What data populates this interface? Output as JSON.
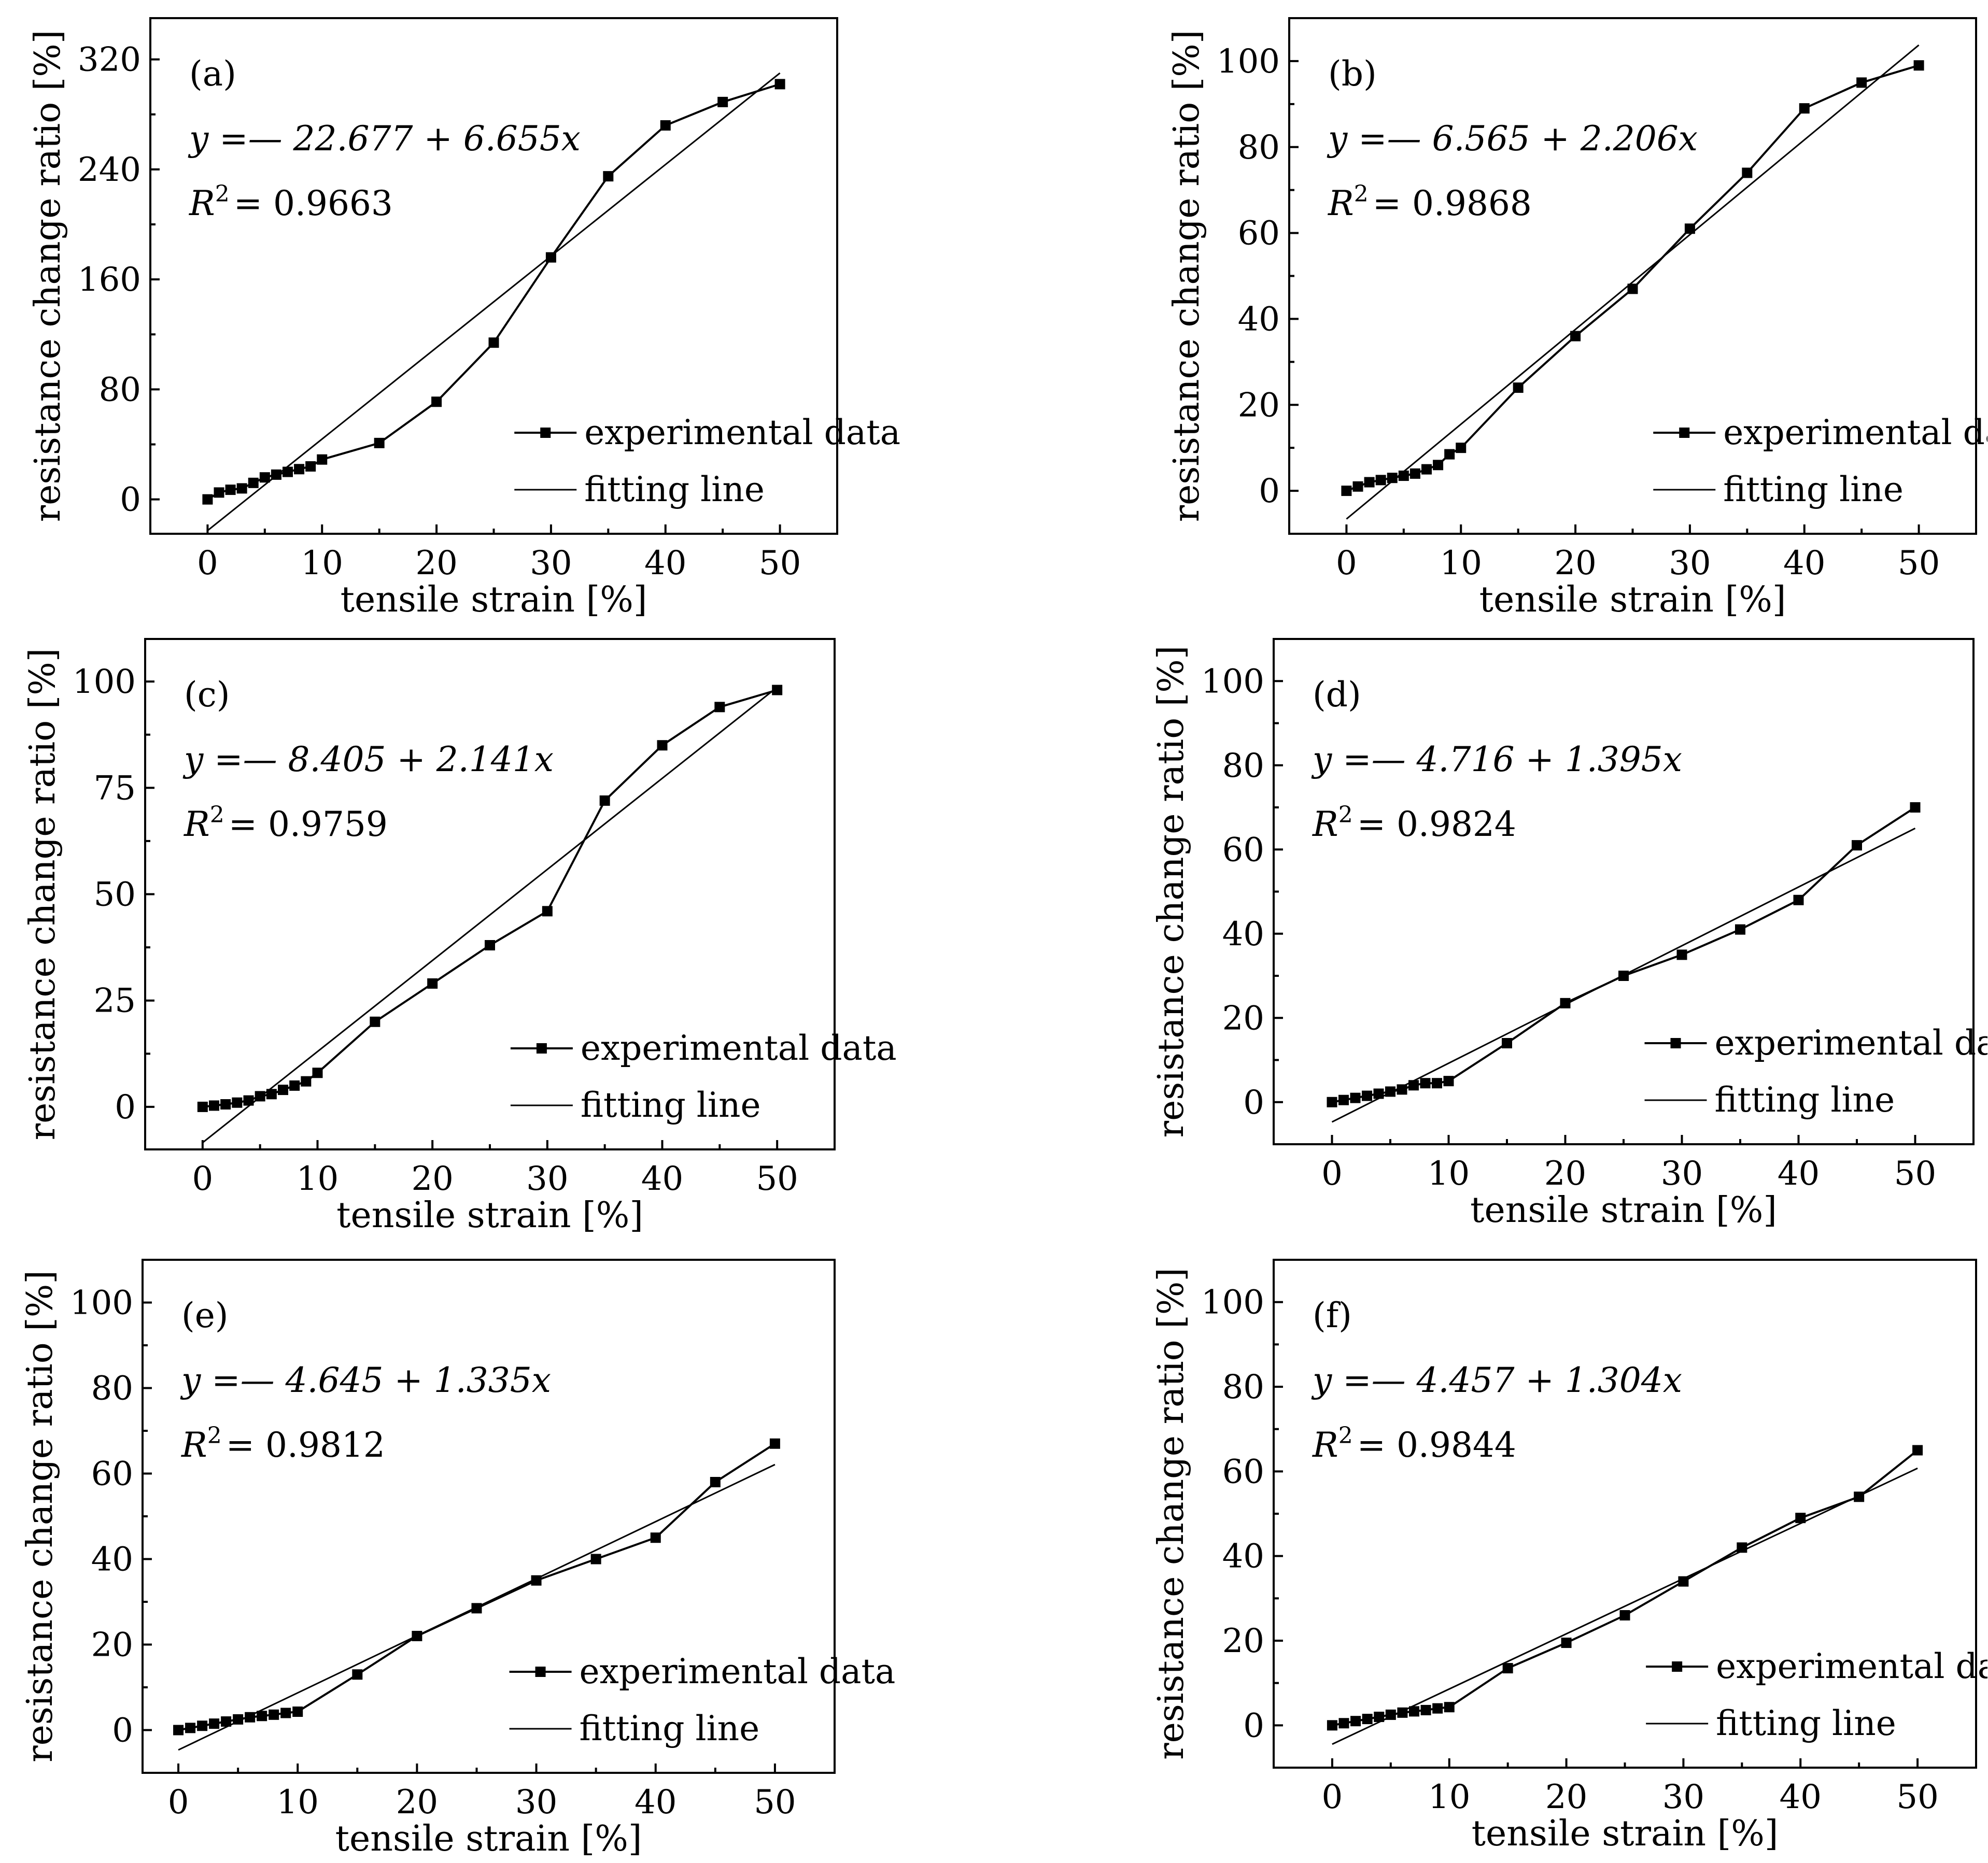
{
  "chart_data": [
    {
      "type": "line",
      "panel_label": "(a)",
      "xlabel": "tensile strain [%]",
      "ylabel": "resistance change ratio [%]",
      "xlim": [
        -5,
        55
      ],
      "ylim": [
        -25,
        350
      ],
      "xticks": [
        0,
        10,
        20,
        30,
        40,
        50
      ],
      "yticks": [
        0,
        80,
        160,
        240,
        320
      ],
      "equation": "y =— 22.677 + 6.655x",
      "r2_value": "= 0.9663",
      "fit": {
        "intercept": -22.677,
        "slope": 6.655
      },
      "series": [
        {
          "name": "experimental data",
          "x": [
            0,
            1,
            2,
            3,
            4,
            5,
            6,
            7,
            8,
            9,
            10,
            15,
            20,
            25,
            30,
            35,
            40,
            45,
            50
          ],
          "y": [
            0,
            5,
            7,
            8,
            12,
            16,
            18,
            20,
            22,
            24,
            29,
            41,
            71,
            114,
            176,
            235,
            272,
            289,
            302
          ]
        },
        {
          "name": "fitting line"
        }
      ]
    },
    {
      "type": "line",
      "panel_label": "(b)",
      "xlabel": "tensile strain [%]",
      "ylabel": "resistance change ratio [%]",
      "xlim": [
        -5,
        55
      ],
      "ylim": [
        -10,
        110
      ],
      "xticks": [
        0,
        10,
        20,
        30,
        40,
        50
      ],
      "yticks": [
        0,
        20,
        40,
        60,
        80,
        100
      ],
      "equation": "y =— 6.565 + 2.206x",
      "r2_value": "= 0.9868",
      "fit": {
        "intercept": -6.565,
        "slope": 2.206
      },
      "series": [
        {
          "name": "experimental data",
          "x": [
            0,
            1,
            2,
            3,
            4,
            5,
            6,
            7,
            8,
            9,
            10,
            15,
            20,
            25,
            30,
            35,
            40,
            45,
            50
          ],
          "y": [
            0,
            1,
            2,
            2.5,
            3,
            3.5,
            4,
            5,
            6,
            8.5,
            10,
            24,
            36,
            47,
            61,
            74,
            89,
            95,
            99
          ]
        },
        {
          "name": "fitting line"
        }
      ]
    },
    {
      "type": "line",
      "panel_label": "(c)",
      "xlabel": "tensile strain [%]",
      "ylabel": "resistance change ratio [%]",
      "xlim": [
        -5,
        55
      ],
      "ylim": [
        -10,
        110
      ],
      "xticks": [
        0,
        10,
        20,
        30,
        40,
        50
      ],
      "yticks": [
        0,
        25,
        50,
        75,
        100
      ],
      "equation": "y =— 8.405 + 2.141x",
      "r2_value": "= 0.9759",
      "fit": {
        "intercept": -8.405,
        "slope": 2.141
      },
      "series": [
        {
          "name": "experimental data",
          "x": [
            0,
            1,
            2,
            3,
            4,
            5,
            6,
            7,
            8,
            9,
            10,
            15,
            20,
            25,
            30,
            35,
            40,
            45,
            50
          ],
          "y": [
            0,
            0.3,
            0.6,
            1,
            1.5,
            2.5,
            3,
            4,
            5,
            6,
            8,
            20,
            29,
            38,
            46,
            72,
            85,
            94,
            98
          ]
        },
        {
          "name": "fitting line"
        }
      ]
    },
    {
      "type": "line",
      "panel_label": "(d)",
      "xlabel": "tensile strain [%]",
      "ylabel": "resistance change ratio [%]",
      "xlim": [
        -5,
        55
      ],
      "ylim": [
        -10,
        110
      ],
      "xticks": [
        0,
        10,
        20,
        30,
        40,
        50
      ],
      "yticks": [
        0,
        20,
        40,
        60,
        80,
        100
      ],
      "equation": "y =— 4.716 + 1.395x",
      "r2_value": "= 0.9824",
      "fit": {
        "intercept": -4.716,
        "slope": 1.395
      },
      "series": [
        {
          "name": "experimental data",
          "x": [
            0,
            1,
            2,
            3,
            4,
            5,
            6,
            7,
            8,
            9,
            10,
            15,
            20,
            25,
            30,
            35,
            40,
            45,
            50
          ],
          "y": [
            0,
            0.5,
            1,
            1.5,
            2,
            2.5,
            3,
            4,
            4.5,
            4.5,
            5,
            14,
            23.5,
            30,
            35,
            41,
            48,
            61,
            70
          ]
        },
        {
          "name": "fitting line"
        }
      ]
    },
    {
      "type": "line",
      "panel_label": "(e)",
      "xlabel": "tensile strain [%]",
      "ylabel": "resistance change ratio [%]",
      "xlim": [
        -3,
        55
      ],
      "ylim": [
        -10,
        110
      ],
      "xticks": [
        0,
        10,
        20,
        30,
        40,
        50
      ],
      "yticks": [
        0,
        20,
        40,
        60,
        80,
        100
      ],
      "equation": "y =— 4.645 + 1.335x",
      "r2_value": "= 0.9812",
      "fit": {
        "intercept": -4.645,
        "slope": 1.335
      },
      "series": [
        {
          "name": "experimental data",
          "x": [
            0,
            1,
            2,
            3,
            4,
            5,
            6,
            7,
            8,
            9,
            10,
            15,
            20,
            25,
            30,
            35,
            40,
            45,
            50
          ],
          "y": [
            0,
            0.5,
            1,
            1.5,
            2,
            2.5,
            3,
            3.3,
            3.6,
            4,
            4.3,
            13,
            22,
            28.5,
            35,
            40,
            45,
            58,
            67
          ]
        },
        {
          "name": "fitting line"
        }
      ]
    },
    {
      "type": "line",
      "panel_label": "(f)",
      "xlabel": "tensile strain [%]",
      "ylabel": "resistance change ratio [%]",
      "xlim": [
        -5,
        55
      ],
      "ylim": [
        -10,
        110
      ],
      "xticks": [
        0,
        10,
        20,
        30,
        40,
        50
      ],
      "yticks": [
        0,
        20,
        40,
        60,
        80,
        100
      ],
      "equation": "y =— 4.457 + 1.304x",
      "r2_value": "= 0.9844",
      "fit": {
        "intercept": -4.457,
        "slope": 1.304
      },
      "series": [
        {
          "name": "experimental data",
          "x": [
            0,
            1,
            2,
            3,
            4,
            5,
            6,
            7,
            8,
            9,
            10,
            15,
            20,
            25,
            30,
            35,
            40,
            45,
            50
          ],
          "y": [
            0,
            0.5,
            1,
            1.5,
            2,
            2.5,
            3,
            3.3,
            3.6,
            4,
            4.3,
            13.5,
            19.5,
            26,
            34,
            42,
            49,
            54,
            65
          ]
        },
        {
          "name": "fitting line"
        }
      ]
    }
  ]
}
